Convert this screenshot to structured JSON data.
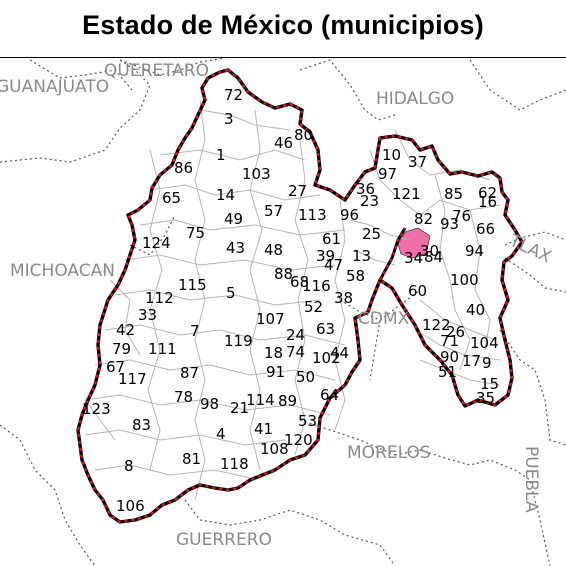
{
  "title": "Estado de México (municipios)",
  "colors": {
    "state_border_outer": "#000000",
    "state_border_inner": "#e0141e",
    "municipal_lines": "#b4b4b4",
    "neighbor_lines": "#555555",
    "neighbor_text": "#8a8a8a",
    "highlight_fill": "#f06fa8",
    "background": "#ffffff"
  },
  "neighbors": [
    {
      "id": "guanajuato",
      "label": "GUANAJUATO"
    },
    {
      "id": "queretaro",
      "label": "QUERETARO"
    },
    {
      "id": "hidalgo",
      "label": "HIDALGO"
    },
    {
      "id": "michoacan",
      "label": "MICHOACAN"
    },
    {
      "id": "tlax",
      "label": "TLAX"
    },
    {
      "id": "cdmx",
      "label": "CDMX"
    },
    {
      "id": "morelos",
      "label": "MORELOS"
    },
    {
      "id": "puebla",
      "label": "PUEBLA"
    },
    {
      "id": "guerrero",
      "label": "GUERRERO"
    }
  ],
  "highlighted_municipality": "34",
  "municipalities": [
    "72",
    "3",
    "46",
    "80",
    "1",
    "86",
    "103",
    "27",
    "65",
    "14",
    "49",
    "57",
    "113",
    "124",
    "75",
    "43",
    "48",
    "115",
    "5",
    "112",
    "33",
    "42",
    "79",
    "111",
    "7",
    "67",
    "117",
    "119",
    "87",
    "123",
    "78",
    "98",
    "21",
    "114",
    "89",
    "83",
    "4",
    "41",
    "81",
    "118",
    "8",
    "106",
    "108",
    "120",
    "107",
    "88",
    "68",
    "116",
    "52",
    "91",
    "50",
    "53",
    "64",
    "61",
    "39",
    "47",
    "58",
    "38",
    "63",
    "44",
    "24",
    "102",
    "18",
    "74",
    "10",
    "97",
    "37",
    "36",
    "121",
    "85",
    "62",
    "16",
    "76",
    "66",
    "93",
    "94",
    "100",
    "40",
    "104",
    "9",
    "35",
    "15",
    "96",
    "13",
    "23",
    "25",
    "30",
    "82",
    "34",
    "84",
    "60",
    "122",
    "26",
    "71",
    "90",
    "17",
    "51"
  ]
}
